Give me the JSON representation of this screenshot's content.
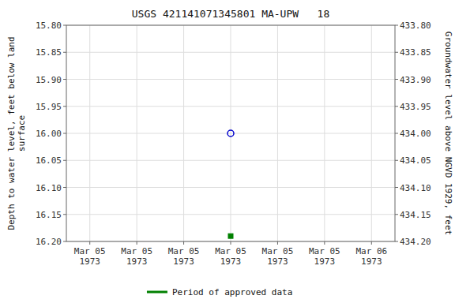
{
  "chart_data": {
    "type": "scatter",
    "title": "USGS 421141071345801 MA-UPW   18",
    "y_label": "Depth to water level, feet below land\nsurface",
    "y2_label": "Groundwater level above NGVD 1929, feet",
    "categories": [
      "Mar 05\n1973",
      "Mar 05\n1973",
      "Mar 05\n1973",
      "Mar 05\n1973",
      "Mar 05\n1973",
      "Mar 05\n1973",
      "Mar 06\n1973"
    ],
    "series": [
      {
        "name": "Period of approved data",
        "color": "#008000",
        "marker": "square",
        "line_style": "none",
        "values": [
          null,
          null,
          null,
          16.19,
          null,
          null,
          null
        ]
      },
      {
        "color": "#0000CC",
        "marker": "circle",
        "line_style": "none",
        "values": [
          null,
          null,
          null,
          16.0,
          null,
          null,
          null
        ]
      }
    ],
    "ylim": [
      16.2,
      15.8
    ],
    "yticks": [
      {
        "value": 15.8,
        "label": "15.80"
      },
      {
        "value": 15.85,
        "label": "15.85"
      },
      {
        "value": 15.9,
        "label": "15.90"
      },
      {
        "value": 15.95,
        "label": "15.95"
      },
      {
        "value": 16.0,
        "label": "16.00"
      },
      {
        "value": 16.05,
        "label": "16.05"
      },
      {
        "value": 16.1,
        "label": "16.10"
      },
      {
        "value": 16.15,
        "label": "16.15"
      },
      {
        "value": 16.2,
        "label": "16.20"
      }
    ],
    "y2lim": [
      434.2,
      433.8
    ],
    "y2ticks": [
      {
        "value": 433.8,
        "label": "433.80"
      },
      {
        "value": 433.85,
        "label": "433.85"
      },
      {
        "value": 433.9,
        "label": "433.90"
      },
      {
        "value": 433.95,
        "label": "433.95"
      },
      {
        "value": 434.0,
        "label": "434.00"
      },
      {
        "value": 434.05,
        "label": "434.05"
      },
      {
        "value": 434.1,
        "label": "434.10"
      },
      {
        "value": 434.15,
        "label": "434.15"
      },
      {
        "value": 434.2,
        "label": "434.20"
      }
    ],
    "grid": true,
    "legend": "bottom"
  }
}
